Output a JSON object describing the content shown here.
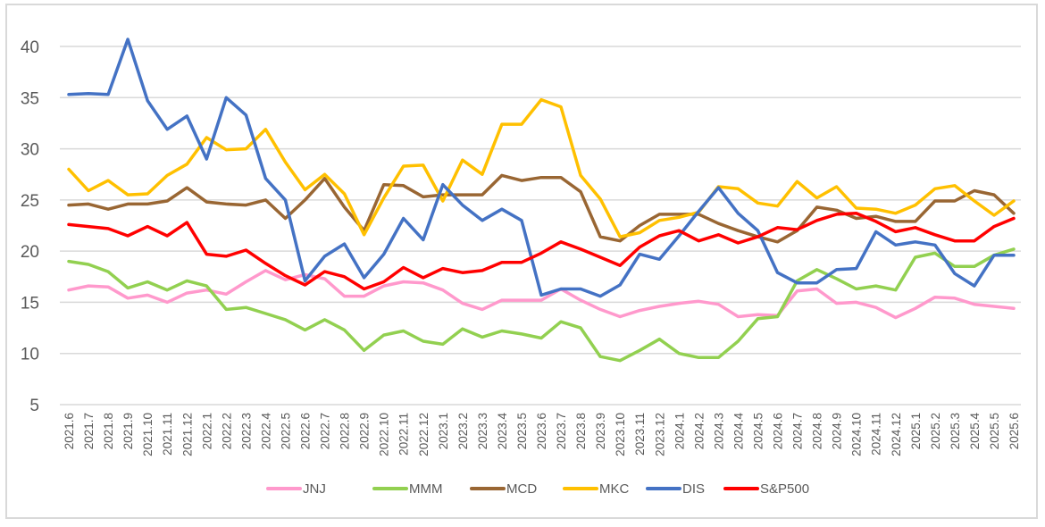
{
  "chart_data": {
    "type": "line",
    "title": "",
    "xlabel": "",
    "ylabel": "",
    "ylim": [
      5,
      40
    ],
    "yticks": [
      "5",
      "10",
      "15",
      "20",
      "25",
      "30",
      "35",
      "40"
    ],
    "grid": true,
    "legend_position": "bottom",
    "x": [
      "2021.6",
      "2021.7",
      "2021.8",
      "2021.9",
      "2021.10",
      "2021.11",
      "2021.12",
      "2022.1",
      "2022.2",
      "2022.3",
      "2022.4",
      "2022.5",
      "2022.6",
      "2022.7",
      "2022.8",
      "2022.9",
      "2022.10",
      "2022.11",
      "2022.12",
      "2023.1",
      "2023.2",
      "2023.3",
      "2023.4",
      "2023.5",
      "2023.6",
      "2023.7",
      "2023.8",
      "2023.9",
      "2023.10",
      "2023.11",
      "2023.12",
      "2024.1",
      "2024.2",
      "2024.3",
      "2024.4",
      "2024.5",
      "2024.6",
      "2024.7",
      "2024.8",
      "2024.9",
      "2024.10",
      "2024.11",
      "2024.12",
      "2025.1",
      "2025.2",
      "2025.3",
      "2025.4",
      "2025.5",
      "2025.6"
    ],
    "series": [
      {
        "name": "JNJ",
        "color": "#ff99cc",
        "values": [
          16.2,
          16.6,
          16.5,
          15.4,
          15.7,
          15.0,
          15.9,
          16.2,
          15.8,
          17.0,
          18.1,
          17.2,
          17.7,
          17.3,
          15.6,
          15.6,
          16.6,
          17.0,
          16.9,
          16.2,
          14.9,
          14.3,
          15.2,
          15.2,
          15.2,
          16.3,
          15.2,
          14.3,
          13.6,
          14.2,
          14.6,
          14.9,
          15.1,
          14.8,
          13.6,
          13.8,
          13.7,
          16.1,
          16.3,
          14.9,
          15.0,
          14.5,
          13.5,
          14.4,
          15.5,
          15.4,
          14.8,
          14.6,
          14.4
        ]
      },
      {
        "name": "MMM",
        "color": "#92d050",
        "values": [
          19.0,
          18.7,
          18.0,
          16.4,
          17.0,
          16.2,
          17.1,
          16.6,
          14.3,
          14.5,
          13.9,
          13.3,
          12.3,
          13.3,
          12.3,
          10.3,
          11.8,
          12.2,
          11.2,
          10.9,
          12.4,
          11.6,
          12.2,
          11.9,
          11.5,
          13.1,
          12.5,
          9.7,
          9.3,
          10.3,
          11.4,
          10.0,
          9.6,
          9.6,
          11.2,
          13.4,
          13.6,
          17.1,
          18.2,
          17.3,
          16.3,
          16.6,
          16.2,
          19.4,
          19.8,
          18.5,
          18.5,
          19.6,
          20.2
        ]
      },
      {
        "name": "MCD",
        "color": "#996633",
        "values": [
          24.5,
          24.6,
          24.1,
          24.6,
          24.6,
          24.9,
          26.2,
          24.8,
          24.6,
          24.5,
          25.0,
          23.2,
          25.0,
          27.1,
          24.3,
          22.0,
          26.5,
          26.4,
          25.3,
          25.5,
          25.5,
          25.5,
          27.4,
          26.9,
          27.2,
          27.2,
          25.8,
          21.4,
          21.0,
          22.5,
          23.6,
          23.6,
          23.6,
          22.7,
          22.0,
          21.4,
          20.9,
          22.0,
          24.3,
          24.0,
          23.2,
          23.4,
          22.9,
          22.9,
          24.9,
          24.9,
          25.9,
          25.5,
          23.7
        ]
      },
      {
        "name": "MKC",
        "color": "#ffc000",
        "values": [
          28.0,
          25.9,
          26.9,
          25.5,
          25.6,
          27.4,
          28.5,
          31.1,
          29.9,
          30.0,
          31.9,
          28.7,
          26.0,
          27.5,
          25.6,
          21.6,
          25.2,
          28.3,
          28.4,
          24.9,
          28.9,
          27.5,
          32.4,
          32.4,
          34.8,
          34.1,
          27.4,
          25.1,
          21.4,
          21.8,
          23.0,
          23.3,
          23.8,
          26.3,
          26.1,
          24.7,
          24.4,
          26.8,
          25.2,
          26.3,
          24.2,
          24.1,
          23.7,
          24.5,
          26.1,
          26.4,
          24.9,
          23.5,
          24.9
        ]
      },
      {
        "name": "DIS",
        "color": "#4472c4",
        "values": [
          35.3,
          35.4,
          35.3,
          40.7,
          34.7,
          31.9,
          33.2,
          29.0,
          35.0,
          33.3,
          27.1,
          25.0,
          17.1,
          19.5,
          20.7,
          17.4,
          19.7,
          23.2,
          21.1,
          26.5,
          24.5,
          23.0,
          24.1,
          23.0,
          15.7,
          16.3,
          16.3,
          15.6,
          16.7,
          19.7,
          19.2,
          21.5,
          23.9,
          26.2,
          23.7,
          22.0,
          17.9,
          16.9,
          16.9,
          18.2,
          18.3,
          21.9,
          20.6,
          20.9,
          20.6,
          17.8,
          16.6,
          19.6,
          19.6
        ]
      },
      {
        "name": "S&P500",
        "color": "#ff0000",
        "values": [
          22.6,
          22.4,
          22.2,
          21.5,
          22.4,
          21.5,
          22.8,
          19.7,
          19.5,
          20.1,
          18.8,
          17.6,
          16.7,
          18.0,
          17.5,
          16.3,
          17.0,
          18.4,
          17.4,
          18.3,
          17.9,
          18.1,
          18.9,
          18.9,
          19.8,
          20.9,
          20.2,
          19.4,
          18.6,
          20.4,
          21.5,
          22.0,
          21.0,
          21.6,
          20.8,
          21.4,
          22.3,
          22.1,
          23.0,
          23.6,
          23.7,
          22.9,
          21.9,
          22.3,
          21.6,
          21.0,
          21.0,
          22.4,
          23.2
        ]
      }
    ]
  }
}
